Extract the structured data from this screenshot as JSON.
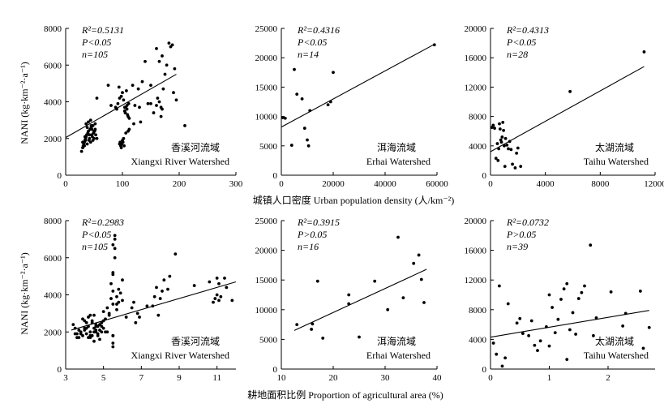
{
  "figure": {
    "xlabel_top": "城镇人口密度 Urban population density (人/km⁻²)",
    "xlabel_bottom": "耕地面积比例 Proportion of agricultural area (%)",
    "ylabel": "NANI (kg·km⁻²·a⁻¹)"
  },
  "chart_data": [
    {
      "type": "scatter",
      "id": "top-xiangxi",
      "row": 0,
      "col": 0,
      "watershed_cn": "香溪河流域",
      "watershed_en": "Xiangxi River Watershed",
      "stats": [
        "R²=0.5131",
        "P<0.05",
        "n=105"
      ],
      "xlim": [
        0,
        300
      ],
      "ylim": [
        0,
        8000
      ],
      "xticks": [
        0,
        100,
        200,
        300
      ],
      "yticks": [
        0,
        2000,
        4000,
        6000,
        8000
      ],
      "x": [
        28,
        30,
        31,
        32,
        33,
        34,
        35,
        36,
        37,
        38,
        39,
        40,
        41,
        42,
        43,
        44,
        45,
        46,
        47,
        48,
        49,
        50,
        51,
        52,
        53,
        55,
        30,
        33,
        36,
        40,
        44,
        48,
        52,
        34,
        38,
        42,
        46,
        50,
        35,
        45,
        55,
        75,
        80,
        88,
        90,
        92,
        94,
        95,
        96,
        97,
        98,
        99,
        100,
        101,
        102,
        103,
        104,
        105,
        106,
        107,
        108,
        109,
        110,
        111,
        112,
        95,
        98,
        102,
        106,
        110,
        100,
        104,
        108,
        112,
        118,
        122,
        130,
        128,
        135,
        140,
        150,
        155,
        160,
        162,
        165,
        168,
        170,
        172,
        175,
        178,
        160,
        165,
        185,
        188,
        190,
        192,
        170,
        182,
        195,
        168,
        150,
        145,
        132,
        210,
        120
      ],
      "y": [
        1300,
        1500,
        1600,
        1700,
        1800,
        1900,
        2000,
        2100,
        2200,
        1700,
        2300,
        2400,
        1900,
        2000,
        2500,
        1800,
        2600,
        2200,
        2100,
        1900,
        2300,
        2000,
        2400,
        2500,
        2200,
        2000,
        1800,
        1600,
        2800,
        2900,
        3000,
        2700,
        2800,
        2100,
        2600,
        2200,
        2500,
        2400,
        1900,
        2700,
        4200,
        4900,
        3800,
        3700,
        3600,
        3900,
        4800,
        1700,
        1800,
        1600,
        1500,
        1700,
        1900,
        1800,
        2000,
        1600,
        3500,
        3400,
        3700,
        4600,
        3800,
        3300,
        3200,
        3900,
        3100,
        4200,
        4300,
        4100,
        2300,
        2400,
        4500,
        3700,
        3600,
        2500,
        4900,
        3800,
        3700,
        4700,
        5100,
        6200,
        3900,
        3400,
        3800,
        4200,
        4000,
        3200,
        3600,
        4700,
        5500,
        6000,
        6900,
        6200,
        7000,
        7100,
        4500,
        5800,
        6500,
        7200,
        4100,
        3700,
        4900,
        3900,
        2900,
        2700,
        2800
      ],
      "fit": [
        [
          0,
          2050
        ],
        [
          195,
          5500
        ]
      ]
    },
    {
      "type": "scatter",
      "id": "top-erhai",
      "row": 0,
      "col": 1,
      "watershed_cn": "洱海流域",
      "watershed_en": "Erhai Watershed",
      "stats": [
        "R²=0.4316",
        "P<0.05",
        "n=14"
      ],
      "xlim": [
        0,
        60000
      ],
      "ylim": [
        0,
        25000
      ],
      "xticks": [
        0,
        20000,
        40000,
        60000
      ],
      "yticks": [
        0,
        5000,
        10000,
        15000,
        20000,
        25000
      ],
      "x": [
        500,
        1500,
        4000,
        5000,
        6000,
        8000,
        9000,
        10000,
        10500,
        11000,
        18000,
        19000,
        20000,
        59000
      ],
      "y": [
        9800,
        9700,
        5100,
        18000,
        13800,
        13000,
        8000,
        6000,
        5000,
        11000,
        12000,
        12500,
        17500,
        22200
      ],
      "fit": [
        [
          0,
          8200
        ],
        [
          59000,
          22300
        ]
      ]
    },
    {
      "type": "scatter",
      "id": "top-taihu",
      "row": 0,
      "col": 2,
      "watershed_cn": "太湖流域",
      "watershed_en": "Taihu Watershed",
      "stats": [
        "R²=0.4313",
        "P<0.05",
        "n=28"
      ],
      "xlim": [
        0,
        12000
      ],
      "ylim": [
        0,
        20000
      ],
      "xticks": [
        0,
        4000,
        8000,
        12000
      ],
      "yticks": [
        0,
        4000,
        8000,
        12000,
        16000,
        20000
      ],
      "x": [
        100,
        200,
        300,
        400,
        500,
        550,
        600,
        650,
        700,
        750,
        800,
        850,
        900,
        950,
        1000,
        1050,
        1100,
        1200,
        1300,
        1400,
        1500,
        1600,
        1800,
        1900,
        2000,
        2200,
        5800,
        11200
      ],
      "y": [
        6500,
        6800,
        6400,
        2300,
        4300,
        2000,
        3600,
        7000,
        6300,
        4800,
        4500,
        5200,
        7200,
        6100,
        4000,
        1200,
        5000,
        4100,
        3600,
        4600,
        3500,
        1500,
        1000,
        3000,
        3700,
        1200,
        11400,
        16800
      ],
      "fit": [
        [
          0,
          3200
        ],
        [
          11200,
          14800
        ]
      ]
    },
    {
      "type": "scatter",
      "id": "bottom-xiangxi",
      "row": 1,
      "col": 0,
      "watershed_cn": "香溪河流域",
      "watershed_en": "Xiangxi River Watershed",
      "stats": [
        "R²=0.2983",
        "P<0.05",
        "n=105"
      ],
      "xlim": [
        3,
        12
      ],
      "ylim": [
        0,
        8000
      ],
      "xticks": [
        3,
        5,
        7,
        9,
        11
      ],
      "yticks": [
        0,
        2000,
        4000,
        6000,
        8000
      ],
      "x": [
        3.4,
        3.5,
        3.6,
        3.7,
        3.8,
        3.9,
        4.0,
        4.0,
        4.1,
        4.1,
        4.2,
        4.2,
        4.3,
        4.3,
        4.4,
        4.4,
        4.5,
        4.5,
        4.6,
        4.6,
        4.7,
        4.7,
        4.8,
        4.8,
        4.9,
        4.9,
        5.0,
        5.0,
        5.1,
        5.2,
        5.3,
        5.4,
        5.4,
        5.5,
        5.5,
        5.5,
        5.5,
        5.5,
        5.5,
        5.6,
        5.6,
        5.6,
        5.6,
        5.7,
        5.7,
        5.8,
        5.8,
        5.9,
        6.0,
        6.0,
        6.5,
        6.6,
        6.7,
        6.8,
        7.6,
        7.7,
        7.8,
        7.9,
        8.0,
        8.1,
        8.2,
        8.5,
        8.8,
        10.8,
        10.9,
        11.0,
        11.0,
        11.1,
        11.1,
        11.2,
        11.5,
        11.8,
        3.8,
        4.1,
        4.3,
        4.6,
        4.9,
        5.2,
        3.6,
        4.4,
        4.7,
        5.0,
        4.2,
        3.9,
        4.5,
        5.7,
        6.2,
        4.8,
        4.0,
        4.3,
        5.3,
        3.5,
        3.7,
        4.6,
        5.1,
        6.9,
        7.3,
        8.4,
        9.8,
        10.6,
        11.4,
        5.5,
        5.5,
        5.5,
        4.5
      ],
      "y": [
        2400,
        2200,
        1900,
        1700,
        2000,
        1800,
        2100,
        2600,
        1900,
        2500,
        1700,
        2300,
        2000,
        2900,
        1800,
        2600,
        2200,
        1500,
        2400,
        2000,
        1800,
        2300,
        2100,
        1600,
        2000,
        2500,
        2200,
        3100,
        2700,
        3300,
        2900,
        3800,
        4600,
        1200,
        1400,
        1800,
        3500,
        4200,
        5100,
        6500,
        7000,
        7200,
        6000,
        3200,
        3900,
        3600,
        4300,
        4100,
        3700,
        4800,
        3300,
        3600,
        2500,
        3000,
        3400,
        3900,
        4400,
        2900,
        3800,
        4200,
        4800,
        5000,
        6200,
        3600,
        3800,
        4000,
        4900,
        3700,
        4600,
        3900,
        4400,
        3700,
        1900,
        2200,
        1700,
        2100,
        2300,
        2000,
        1700,
        2500,
        1900,
        2600,
        2800,
        2700,
        2900,
        3500,
        2800,
        2400,
        2200,
        1800,
        3000,
        1900,
        2100,
        2300,
        2000,
        2800,
        3400,
        4300,
        4500,
        4700,
        4900,
        5200,
        6700,
        1800,
        2000
      ],
      "fit": [
        [
          3.3,
          2100
        ],
        [
          12,
          4700
        ]
      ]
    },
    {
      "type": "scatter",
      "id": "bottom-erhai",
      "row": 1,
      "col": 1,
      "watershed_cn": "洱海流域",
      "watershed_en": "Erhai Watershed",
      "stats": [
        "R²=0.3915",
        "P>0.05",
        "n=16"
      ],
      "xlim": [
        10,
        40
      ],
      "ylim": [
        0,
        25000
      ],
      "xticks": [
        10,
        20,
        30,
        40
      ],
      "yticks": [
        0,
        5000,
        10000,
        15000,
        20000,
        25000
      ],
      "x": [
        13,
        15.8,
        16,
        17,
        18,
        23,
        23,
        25,
        28,
        30.5,
        32.5,
        33.5,
        35.5,
        36.5,
        37,
        37.5
      ],
      "y": [
        7500,
        6700,
        7600,
        14800,
        5200,
        12500,
        11000,
        5400,
        14800,
        10000,
        22200,
        12000,
        17800,
        19200,
        15100,
        11200
      ],
      "fit": [
        [
          12.5,
          6500
        ],
        [
          38,
          16800
        ]
      ]
    },
    {
      "type": "scatter",
      "id": "bottom-taihu",
      "row": 1,
      "col": 2,
      "watershed_cn": "太湖流域",
      "watershed_en": "Taihu Watershed",
      "stats": [
        "R²=0.0732",
        "P>0.05",
        "n=39"
      ],
      "xlim": [
        0,
        2.8
      ],
      "ylim": [
        0,
        20000
      ],
      "xticks": [
        0,
        1,
        2
      ],
      "yticks": [
        0,
        4000,
        8000,
        12000,
        16000,
        20000
      ],
      "x": [
        0.05,
        0.1,
        0.15,
        0.2,
        0.3,
        0.45,
        0.5,
        0.55,
        0.65,
        0.7,
        0.75,
        0.8,
        0.85,
        0.95,
        1.0,
        1.05,
        1.1,
        1.15,
        1.2,
        1.25,
        1.3,
        1.35,
        1.4,
        1.45,
        1.5,
        1.55,
        1.6,
        1.7,
        1.75,
        1.8,
        2.05,
        2.25,
        2.3,
        2.55,
        2.6,
        2.7,
        0.25,
        1.0,
        1.3
      ],
      "y": [
        3500,
        2000,
        11200,
        400,
        8800,
        6200,
        6800,
        4800,
        4500,
        6500,
        3200,
        2500,
        3800,
        5700,
        10000,
        8300,
        4900,
        6700,
        9400,
        10800,
        11500,
        5300,
        7600,
        4700,
        9500,
        10300,
        11200,
        16700,
        4500,
        6900,
        10400,
        5800,
        7500,
        10500,
        2800,
        5600,
        1500,
        3100,
        1300
      ],
      "fit": [
        [
          0,
          4300
        ],
        [
          2.7,
          7900
        ]
      ]
    }
  ]
}
